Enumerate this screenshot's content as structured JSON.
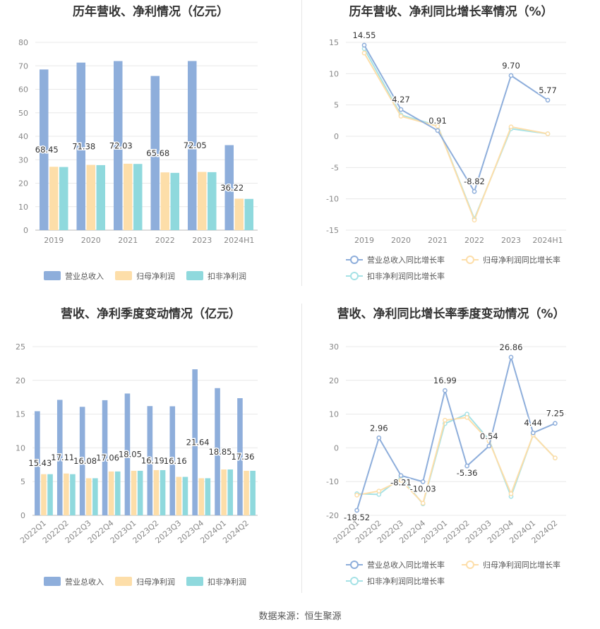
{
  "footer": {
    "text": "数据来源：恒生聚源"
  },
  "chart_data": [
    {
      "id": "annual_bars",
      "type": "bar",
      "title": "历年营收、净利情况（亿元）",
      "categories": [
        "2019",
        "2020",
        "2021",
        "2022",
        "2023",
        "2024H1"
      ],
      "ylim": [
        0,
        80
      ],
      "yticks": [
        0,
        10,
        20,
        30,
        40,
        50,
        60,
        70,
        80
      ],
      "grid": true,
      "legend_position": "bottom",
      "series": [
        {
          "name": "营业总收入",
          "color": "#8eaedb",
          "values": [
            68.45,
            71.38,
            72.03,
            65.68,
            72.05,
            36.22
          ],
          "labels": [
            "68.45",
            "71.38",
            "72.03",
            "65.68",
            "72.05",
            "36.22"
          ]
        },
        {
          "name": "归母净利润",
          "color": "#fddea9",
          "values": [
            27.0,
            27.8,
            28.3,
            24.6,
            24.8,
            13.4
          ]
        },
        {
          "name": "扣非净利润",
          "color": "#8fd9dd",
          "values": [
            26.9,
            27.7,
            28.2,
            24.4,
            24.7,
            13.3
          ]
        }
      ]
    },
    {
      "id": "annual_growth",
      "type": "line",
      "title": "历年营收、净利同比增长率情况（%）",
      "categories": [
        "2019",
        "2020",
        "2021",
        "2022",
        "2023",
        "2024H1"
      ],
      "ylim": [
        -15,
        15
      ],
      "yticks": [
        -15,
        -10,
        -5,
        0,
        5,
        10,
        15
      ],
      "grid": true,
      "legend_position": "bottom",
      "series": [
        {
          "name": "营业总收入同比增长率",
          "color": "#8eaedb",
          "values": [
            14.55,
            4.27,
            0.91,
            -8.82,
            9.7,
            5.77
          ],
          "labels": [
            "14.55",
            "4.27",
            "0.91",
            "-8.82",
            "9.70",
            "5.77"
          ]
        },
        {
          "name": "归母净利润同比增长率",
          "color": "#fddea9",
          "values": [
            13.3,
            3.2,
            1.6,
            -13.4,
            1.5,
            0.4
          ]
        },
        {
          "name": "扣非净利润同比增长率",
          "color": "#a6e2e6",
          "values": [
            14.0,
            3.4,
            1.7,
            -13.2,
            1.2,
            0.4
          ]
        }
      ]
    },
    {
      "id": "quarterly_bars",
      "type": "bar",
      "title": "营收、净利季度变动情况（亿元）",
      "categories": [
        "2022Q1",
        "2022Q2",
        "2022Q3",
        "2022Q4",
        "2023Q1",
        "2023Q2",
        "2023Q3",
        "2023Q4",
        "2024Q1",
        "2024Q2"
      ],
      "ylim": [
        0,
        25
      ],
      "yticks": [
        0,
        5,
        10,
        15,
        20,
        25
      ],
      "grid": true,
      "legend_position": "bottom",
      "series": [
        {
          "name": "营业总收入",
          "color": "#8eaedb",
          "values": [
            15.43,
            17.11,
            16.08,
            17.06,
            18.05,
            16.19,
            16.16,
            21.64,
            18.85,
            17.36
          ],
          "labels": [
            "15.43",
            "17.11",
            "16.08",
            "17.06",
            "18.05",
            "16.19",
            "16.16",
            "21.64",
            "18.85",
            "17.36"
          ]
        },
        {
          "name": "归母净利润",
          "color": "#fddea9",
          "values": [
            6.1,
            6.2,
            5.5,
            6.5,
            6.6,
            6.7,
            5.7,
            5.5,
            6.8,
            6.6
          ]
        },
        {
          "name": "扣非净利润",
          "color": "#8fd9dd",
          "values": [
            6.1,
            6.1,
            5.5,
            6.5,
            6.6,
            6.7,
            5.7,
            5.5,
            6.8,
            6.6
          ]
        }
      ]
    },
    {
      "id": "quarterly_growth",
      "type": "line",
      "title": "营收、净利同比增长率季度变动情况（%）",
      "categories": [
        "2022Q1",
        "2022Q2",
        "2022Q3",
        "2022Q4",
        "2023Q1",
        "2023Q2",
        "2023Q3",
        "2023Q4",
        "2024Q1",
        "2024Q2"
      ],
      "ylim": [
        -20,
        30
      ],
      "yticks": [
        -20,
        -10,
        0,
        10,
        20,
        30
      ],
      "grid": true,
      "legend_position": "bottom",
      "series": [
        {
          "name": "营业总收入同比增长率",
          "color": "#8eaedb",
          "values": [
            -18.52,
            2.96,
            -8.21,
            -10.03,
            16.99,
            -5.36,
            0.54,
            26.86,
            4.44,
            7.25
          ],
          "labels": [
            "-18.52",
            "2.96",
            "-8.21",
            "-10.03",
            "16.99",
            "-5.36",
            "0.54",
            "26.86",
            "4.44",
            "7.25"
          ]
        },
        {
          "name": "归母净利润同比增长率",
          "color": "#fddea9",
          "values": [
            -14.0,
            -12.8,
            -9.6,
            -16.4,
            8.2,
            9.0,
            2.0,
            -13.6,
            3.8,
            -3.0
          ]
        },
        {
          "name": "扣非净利润同比增长率",
          "color": "#a6e2e6",
          "values": [
            -13.6,
            -13.8,
            -8.8,
            -16.6,
            7.2,
            10.0,
            2.4,
            -14.4,
            3.8,
            -3.0
          ]
        }
      ]
    }
  ]
}
